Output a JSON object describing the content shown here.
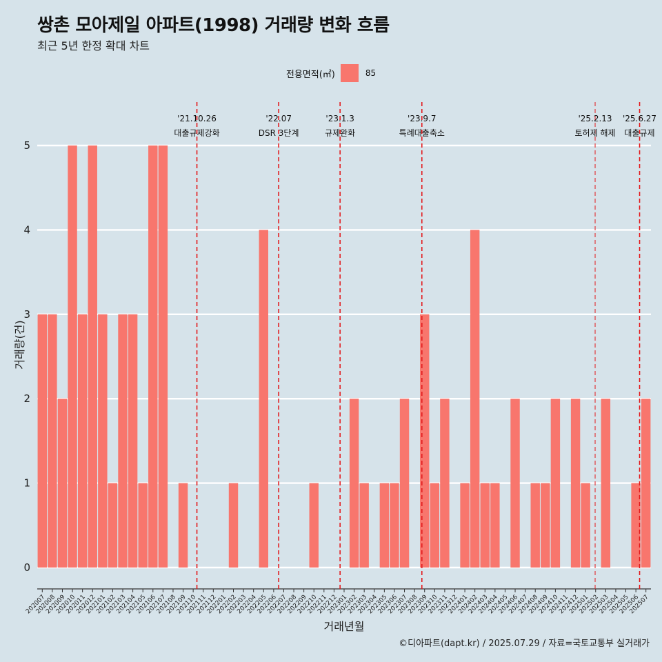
{
  "header": {
    "title": "쌍촌 모아제일 아파트(1998) 거래량 변화 흐름",
    "subtitle": "최근 5년 한정 확대 차트"
  },
  "legend": {
    "title": "전용면적(㎡)",
    "items": [
      {
        "label": "85",
        "color": "#f8766d"
      }
    ]
  },
  "caption": "©디아파트(dapt.kr) / 2025.07.29 / 자료=국토교통부 실거래가",
  "chart_data": {
    "type": "bar",
    "xlabel": "거래년월",
    "ylabel": "거래량(건)",
    "ylim": [
      -0.25,
      5.6
    ],
    "yticks": [
      0,
      1,
      2,
      3,
      4,
      5
    ],
    "bar_color": "#f8766d",
    "categories": [
      "202007",
      "202008",
      "202009",
      "202010",
      "202011",
      "202012",
      "202101",
      "202102",
      "202103",
      "202104",
      "202105",
      "202106",
      "202107",
      "202108",
      "202109",
      "202110",
      "202111",
      "202112",
      "202201",
      "202202",
      "202203",
      "202204",
      "202205",
      "202206",
      "202207",
      "202208",
      "202209",
      "202210",
      "202211",
      "202212",
      "202301",
      "202302",
      "202303",
      "202304",
      "202305",
      "202306",
      "202307",
      "202308",
      "202309",
      "202310",
      "202311",
      "202312",
      "202401",
      "202402",
      "202403",
      "202404",
      "202405",
      "202406",
      "202407",
      "202408",
      "202409",
      "202410",
      "202411",
      "202412",
      "202501",
      "202502",
      "202503",
      "202504",
      "202505",
      "202506",
      "202507"
    ],
    "values": [
      3,
      3,
      2,
      5,
      3,
      5,
      3,
      1,
      3,
      3,
      1,
      5,
      5,
      0,
      1,
      0,
      0,
      0,
      0,
      1,
      0,
      0,
      4,
      0,
      0,
      0,
      0,
      1,
      0,
      0,
      0,
      2,
      1,
      0,
      1,
      1,
      2,
      0,
      3,
      1,
      2,
      0,
      1,
      4,
      1,
      1,
      0,
      2,
      0,
      1,
      1,
      2,
      0,
      2,
      1,
      0,
      2,
      0,
      0,
      1,
      2
    ],
    "annotations": [
      {
        "date": "'21.10.26",
        "label": "대출규제강화",
        "x": "202110",
        "offset": 0.87,
        "style": "dashed"
      },
      {
        "date": "'22.07",
        "label": "DSR 3단계",
        "x": "202207",
        "offset": 0.0,
        "style": "dashed"
      },
      {
        "date": "'23.1.3",
        "label": "규제완화",
        "x": "202301",
        "offset": 0.1,
        "style": "dashed"
      },
      {
        "date": "'23.9.7",
        "label": "특례대출축소",
        "x": "202309",
        "offset": 0.23,
        "style": "dashed"
      },
      {
        "date": "'25.2.13",
        "label": "토허제 해제",
        "x": "202502",
        "offset": 0.45,
        "style": "thin-dashed"
      },
      {
        "date": "'25.6.27",
        "label": "대출규제",
        "x": "202506",
        "offset": 0.87,
        "style": "dashed"
      }
    ]
  }
}
